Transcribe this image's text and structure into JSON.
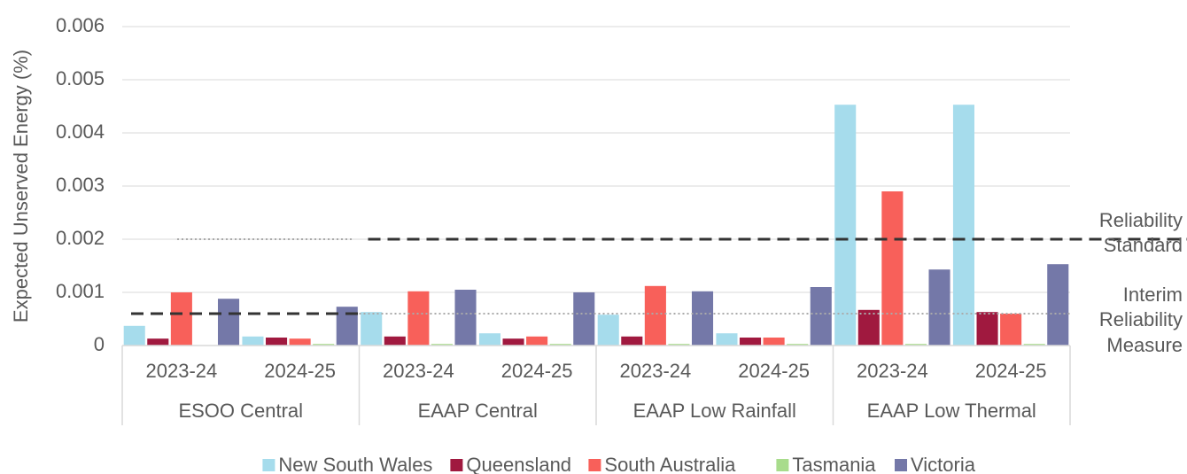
{
  "chart_data": {
    "type": "bar",
    "y_label": "Expected Unserved Energy (%)",
    "categories": [
      "2023-24",
      "2024-25",
      "2023-24",
      "2024-25",
      "2023-24",
      "2024-25",
      "2023-24",
      "2024-25"
    ],
    "category_groups": [
      "ESOO Central",
      "EAAP Central",
      "EAAP Low Rainfall",
      "EAAP Low Thermal"
    ],
    "series": [
      {
        "name": "New South Wales",
        "color": "#a6dcec",
        "values": [
          0.00037,
          0.00017,
          0.00063,
          0.00023,
          0.00058,
          0.00023,
          0.00453,
          0.00453
        ]
      },
      {
        "name": "Queensland",
        "color": "#a0193f",
        "values": [
          0.00013,
          0.00015,
          0.00017,
          0.00013,
          0.00017,
          0.00015,
          0.00067,
          0.00063
        ]
      },
      {
        "name": "South Australia",
        "color": "#f8605a",
        "values": [
          0.001,
          0.00013,
          0.00102,
          0.00017,
          0.00112,
          0.00015,
          0.0029,
          0.0006
        ]
      },
      {
        "name": "Tasmania",
        "color": "#a8dc8c",
        "values": [
          0,
          3e-05,
          3e-05,
          3e-05,
          3e-05,
          3e-05,
          3e-05,
          3e-05
        ]
      },
      {
        "name": "Victoria",
        "color": "#7478a8",
        "values": [
          0.00088,
          0.00073,
          0.00105,
          0.001,
          0.00102,
          0.0011,
          0.00143,
          0.00153
        ]
      }
    ],
    "reference_lines": [
      {
        "label_lines": [
          "Reliability",
          "Standard"
        ],
        "value": 0.002
      },
      {
        "label_lines": [
          "Interim",
          "Reliability",
          "Measure"
        ],
        "value": 0.0006
      }
    ],
    "ylim": [
      0,
      0.006
    ],
    "yticks": [
      0,
      0.001,
      0.002,
      0.003,
      0.004,
      0.005,
      0.006
    ],
    "grid": true,
    "legend": "bottom"
  }
}
